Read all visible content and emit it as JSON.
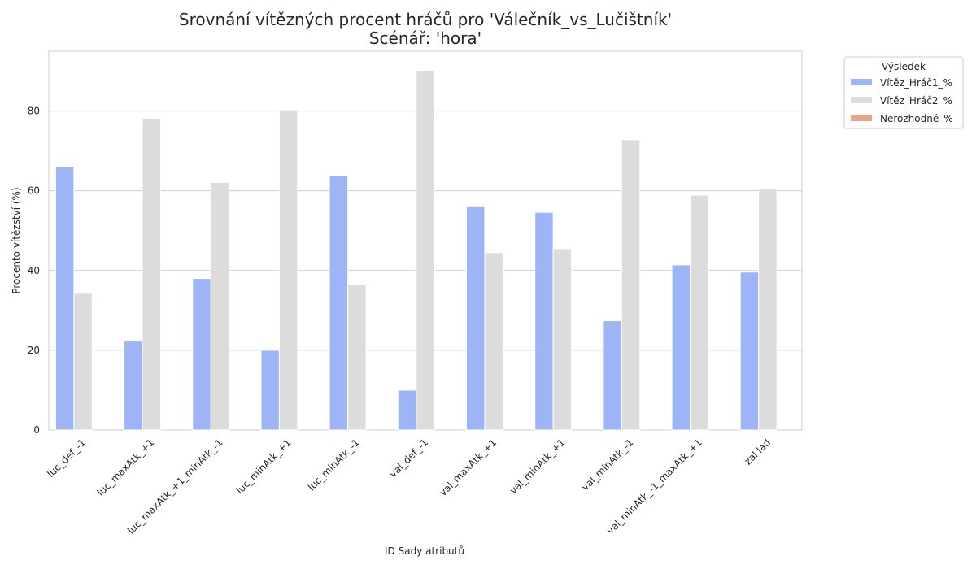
{
  "chart_data": {
    "type": "bar",
    "title": [
      "Srovnání vítězných procent hráčů pro 'Válečník_vs_Lučištník'",
      "Scénář: 'hora'"
    ],
    "xlabel": "ID Sady atributů",
    "ylabel": "Procento vítězství (%)",
    "ylim": [
      0,
      95
    ],
    "yticks": [
      0,
      20,
      40,
      60,
      80
    ],
    "grid": true,
    "legend_position": "outside-top-right",
    "legend_title": "Výsledek",
    "categories": [
      "luc_def_-1",
      "luc_maxAtk_+1",
      "luc_maxAtk_+1_minAtk_-1",
      "luc_minAtk_+1",
      "luc_minAtk_-1",
      "val_def_-1",
      "val_maxAtk_+1",
      "val_minAtk_+1",
      "val_minAtk_-1",
      "val_minAtk_-1_maxAtk_+1",
      "zaklad"
    ],
    "series": [
      {
        "name": "Vítěz_Hráč1_%",
        "color": "#9db4f6",
        "values": [
          66,
          22.3,
          38,
          20,
          63.8,
          10,
          56,
          54.6,
          27.4,
          41.4,
          39.6
        ]
      },
      {
        "name": "Vítěz_Hráč2_%",
        "color": "#dcdcdc",
        "values": [
          34.3,
          78,
          62.1,
          80.3,
          36.4,
          90.2,
          44.5,
          45.5,
          72.8,
          58.9,
          60.5
        ]
      },
      {
        "name": "Nerozhodně_%",
        "color": "#e8a48a",
        "values": [
          0,
          0,
          0,
          0,
          0,
          0,
          0,
          0,
          0,
          0,
          0
        ]
      }
    ]
  }
}
